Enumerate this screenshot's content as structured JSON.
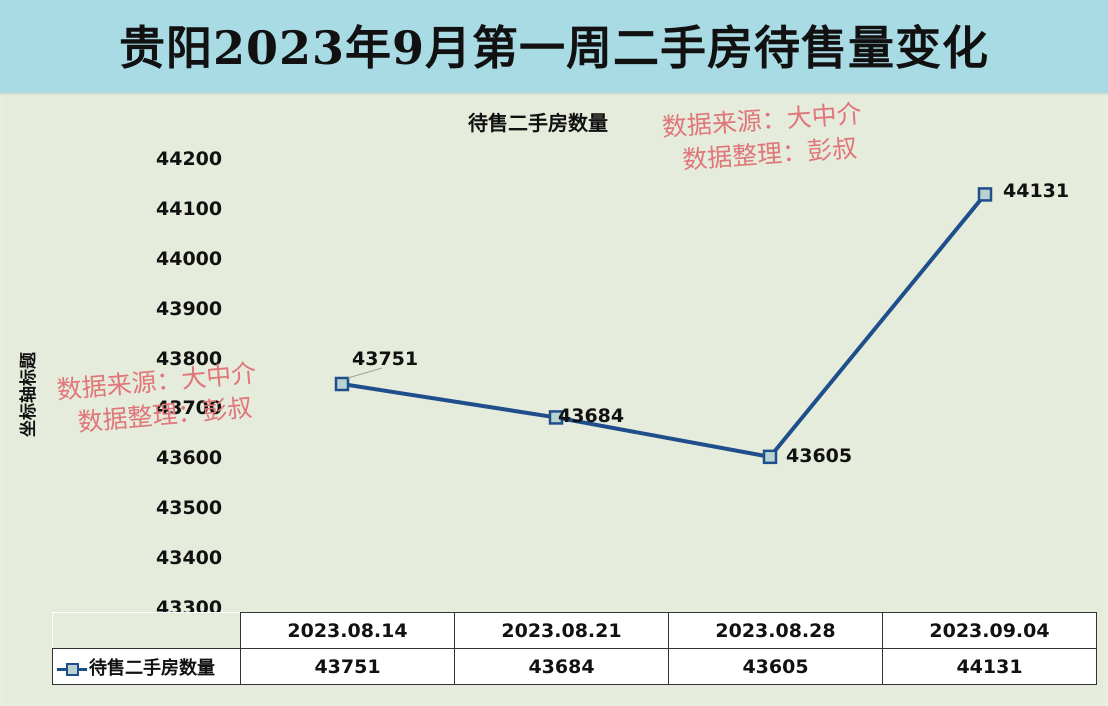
{
  "page_title": "贵阳2023年9月第一周二手房待售量变化",
  "watermark": {
    "line1": "数据来源：大中介",
    "line2": "数据整理：彭叔"
  },
  "legend_label": "待售二手房数量",
  "colors": {
    "series": "#1f4e8c",
    "marker_fill": "#b7d2cf",
    "banner": "#a9dbe5",
    "background": "#e9efdf"
  },
  "chart_data": {
    "type": "line",
    "title": "待售二手房数量",
    "xlabel": "",
    "ylabel": "坐标轴标题",
    "categories": [
      "2023.08.14",
      "2023.08.21",
      "2023.08.28",
      "2023.09.04"
    ],
    "series": [
      {
        "name": "待售二手房数量",
        "values": [
          43751,
          43684,
          43605,
          44131
        ]
      }
    ],
    "ylim": [
      43300,
      44200
    ],
    "yticks": [
      44200,
      44100,
      44000,
      43900,
      43800,
      43700,
      43600,
      43500,
      43400,
      43300
    ],
    "data_labels": [
      "43751",
      "43684",
      "43605",
      "44131"
    ],
    "data_table": true,
    "grid": false,
    "legend_position": "data-table"
  }
}
